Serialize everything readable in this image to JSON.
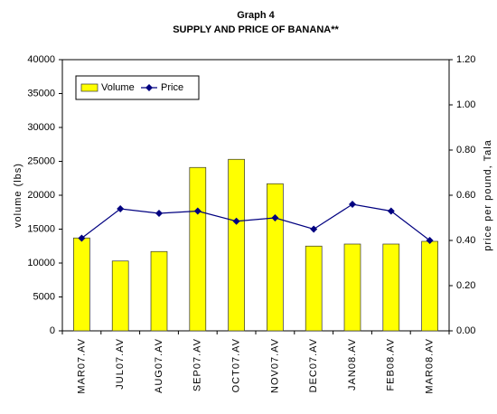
{
  "chart_data": {
    "type": "bar_line",
    "title": "Graph 4",
    "subtitle": "SUPPLY AND PRICE OF BANANA**",
    "ylabel": "volume (lbs)",
    "y2label": "price per pound, Tala",
    "categories": [
      "MAR07.AV",
      "JUL07.AV",
      "AUG07.AV",
      "SEP07.AV",
      "OCT07.AV",
      "NOV07.AV",
      "DEC07.AV",
      "JAN08.AV",
      "FEB08.AV",
      "MAR08.AV"
    ],
    "series": [
      {
        "name": "Volume",
        "type": "bar",
        "color": "#ffff00",
        "values": [
          13700,
          10300,
          11700,
          24100,
          25300,
          21700,
          12500,
          12800,
          12800,
          13200
        ]
      },
      {
        "name": "Price",
        "type": "line",
        "axis": "y2",
        "color": "#000080",
        "values": [
          0.41,
          0.54,
          0.52,
          0.53,
          0.485,
          0.5,
          0.45,
          0.56,
          0.53,
          0.4
        ]
      }
    ],
    "ylim": [
      0,
      40000
    ],
    "yticks": [
      0,
      5000,
      10000,
      15000,
      20000,
      25000,
      30000,
      35000,
      40000
    ],
    "y2lim": [
      0,
      1.2
    ],
    "y2ticks": [
      {
        "value": 0,
        "label": "0.00"
      },
      {
        "value": 0.2,
        "label": "0.20"
      },
      {
        "value": 0.4,
        "label": "0.40"
      },
      {
        "value": 0.6,
        "label": "0.60"
      },
      {
        "value": 0.8,
        "label": "0.80"
      },
      {
        "value": 1.0,
        "label": "1.00"
      },
      {
        "value": 1.2,
        "label": "1.20"
      }
    ],
    "legend": "upper left"
  }
}
